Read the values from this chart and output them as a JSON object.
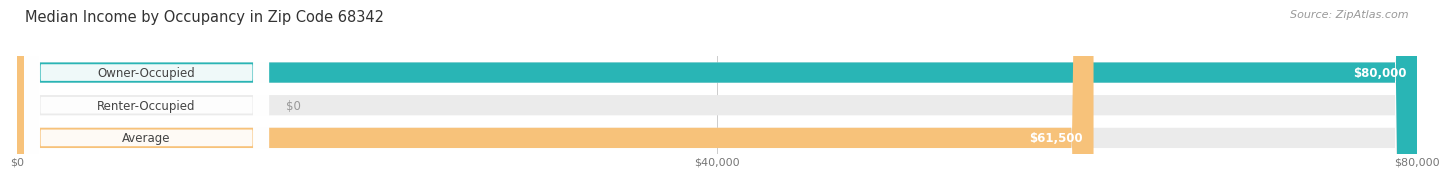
{
  "title": "Median Income by Occupancy in Zip Code 68342",
  "source": "Source: ZipAtlas.com",
  "categories": [
    "Owner-Occupied",
    "Renter-Occupied",
    "Average"
  ],
  "values": [
    80000,
    0,
    61500
  ],
  "bar_colors": [
    "#29b5b5",
    "#c0a8d8",
    "#f7c27a"
  ],
  "track_color": "#ebebeb",
  "value_labels": [
    "$80,000",
    "$0",
    "$61,500"
  ],
  "x_ticks": [
    0,
    40000,
    80000
  ],
  "x_tick_labels": [
    "$0",
    "$40,000",
    "$80,000"
  ],
  "xlim_max": 80000,
  "bar_height": 0.62,
  "title_fontsize": 10.5,
  "source_fontsize": 8,
  "label_fontsize": 8.5,
  "value_fontsize": 8.5,
  "tick_fontsize": 8,
  "bg_color": "#ffffff",
  "grid_color": "#cccccc",
  "label_text_color": "#444444",
  "tick_color": "#777777",
  "source_color": "#999999"
}
